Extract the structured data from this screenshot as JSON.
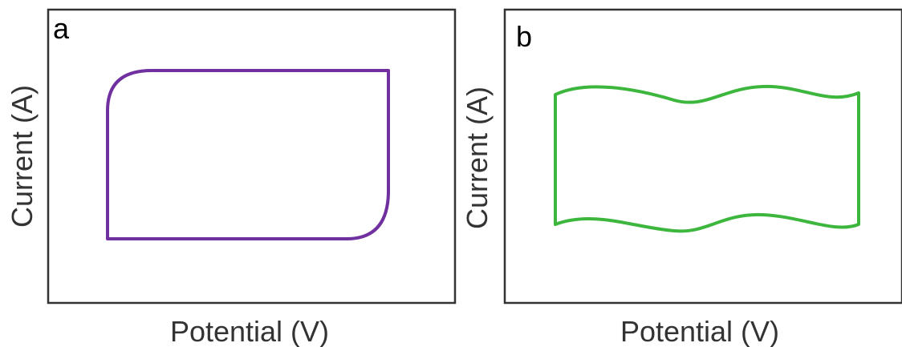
{
  "panels": [
    {
      "letter": "a",
      "xlabel": "Potential (V)",
      "ylabel": "Current (A)",
      "curve_color": "#7030A0"
    },
    {
      "letter": "b",
      "xlabel": "Potential (V)",
      "ylabel": "Current (A)",
      "curve_color": "#3DB63D"
    }
  ]
}
